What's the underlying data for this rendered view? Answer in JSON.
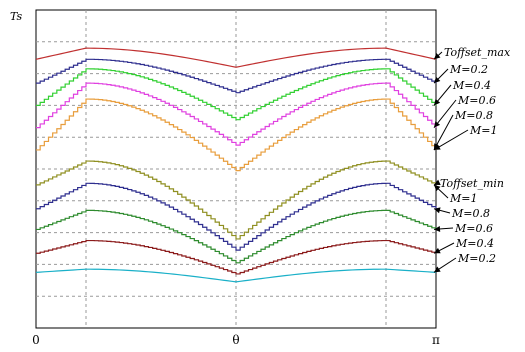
{
  "chart_data": {
    "type": "line",
    "ylabel": "Ts",
    "xlabel": "θ",
    "x_ticks": [
      {
        "value": 0,
        "label": "0"
      },
      {
        "value": 1.5708,
        "label": "θ"
      },
      {
        "value": 3.14159,
        "label": "π"
      }
    ],
    "xlim": [
      0,
      3.14159
    ],
    "ylim": [
      0,
      1
    ],
    "grid": true,
    "grid_x": [
      0.3927,
      1.5708,
      2.7489
    ],
    "grid_y": [
      0.1,
      0.2,
      0.3,
      0.4,
      0.5,
      0.6,
      0.7,
      0.8,
      0.9
    ],
    "legend_placement": "right",
    "series": [
      {
        "key": "offmax",
        "color": "#c03030",
        "stair": false,
        "start": 0.845,
        "mid": 0.82,
        "peak": 0.88
      },
      {
        "key": "max02",
        "color": "#2f2f8f",
        "stair": true,
        "start": 0.77,
        "mid": 0.74,
        "peak": 0.845
      },
      {
        "key": "max04",
        "color": "#32d032",
        "stair": true,
        "start": 0.7,
        "mid": 0.655,
        "peak": 0.815
      },
      {
        "key": "max06",
        "color": "#e040e0",
        "stair": true,
        "start": 0.63,
        "mid": 0.575,
        "peak": 0.77
      },
      {
        "key": "max08",
        "color": "#e89d3c",
        "stair": true,
        "start": 0.56,
        "mid": 0.495,
        "peak": 0.72
      },
      {
        "key": "min1",
        "color": "#8f8f20",
        "stair": true,
        "start": 0.45,
        "mid": 0.28,
        "peak": 0.525
      },
      {
        "key": "min08",
        "color": "#2f2f8f",
        "stair": true,
        "start": 0.375,
        "mid": 0.245,
        "peak": 0.455
      },
      {
        "key": "min06",
        "color": "#2e8b2e",
        "stair": true,
        "start": 0.31,
        "mid": 0.205,
        "peak": 0.37
      },
      {
        "key": "min04",
        "color": "#8b1a1a",
        "stair": true,
        "start": 0.235,
        "mid": 0.17,
        "peak": 0.275
      },
      {
        "key": "min02",
        "color": "#1ab0c8",
        "stair": false,
        "start": 0.175,
        "mid": 0.145,
        "peak": 0.185
      }
    ],
    "annotations": [
      {
        "text": "Toffset_max",
        "target": 0.845
      },
      {
        "text": "M=0.2",
        "target": 0.77
      },
      {
        "text": "M=0.4",
        "target": 0.7
      },
      {
        "text": "M=0.6",
        "target": 0.63
      },
      {
        "text": "M=0.8",
        "target": 0.56
      },
      {
        "text": "M=1",
        "target": 0.56
      },
      {
        "text": "Toffset_min",
        "target": 0.45
      },
      {
        "text": "M=1",
        "target": 0.45
      },
      {
        "text": "M=0.8",
        "target": 0.375
      },
      {
        "text": "M=0.6",
        "target": 0.31
      },
      {
        "text": "M=0.4",
        "target": 0.235
      },
      {
        "text": "M=0.2",
        "target": 0.175
      }
    ]
  }
}
